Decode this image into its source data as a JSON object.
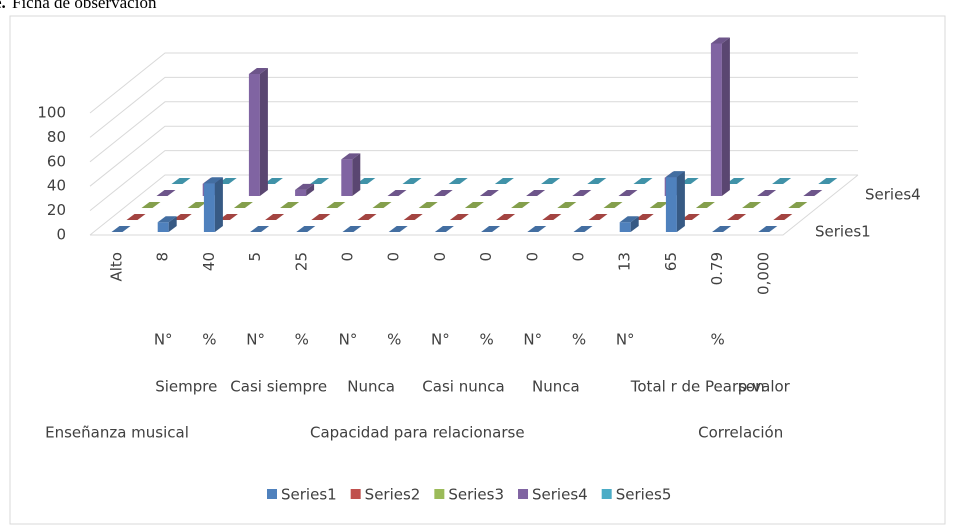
{
  "chart_data": {
    "type": "bar3d",
    "title_prefix": "e.",
    "title": "Ficha de observación",
    "categories": [
      "Alto",
      "8",
      "40",
      "5",
      "25",
      "0",
      "0",
      "0",
      "0",
      "0",
      "0",
      "13",
      "65",
      "0.79",
      "0,000"
    ],
    "category_levels": [
      [
        null,
        "N°",
        "%",
        "N°",
        "%",
        "N°",
        "%",
        "N°",
        "%",
        "N°",
        "%",
        "N°",
        "%",
        null,
        null
      ],
      [
        null,
        "Siempre",
        null,
        "Casi siempre",
        null,
        "Nunca",
        null,
        "Casi nunca",
        null,
        "Nunca",
        null,
        "Total",
        null,
        "r de Pearson",
        "p-valor"
      ],
      [
        "Enseñanza musical",
        "Capacidad para relacionarse",
        null,
        null,
        null,
        null,
        null,
        null,
        null,
        null,
        null,
        null,
        null,
        "Correlación",
        null
      ]
    ],
    "series": [
      {
        "name": "Series1",
        "color": "#4f81bd",
        "values": [
          0,
          8,
          40,
          0,
          0,
          0,
          0,
          0,
          0,
          0,
          0,
          8,
          45,
          0,
          0
        ]
      },
      {
        "name": "Series2",
        "color": "#c0504d",
        "values": [
          0,
          0,
          0,
          0,
          0,
          0,
          0,
          0,
          0,
          0,
          0,
          0,
          0,
          0,
          0
        ]
      },
      {
        "name": "Series3",
        "color": "#9bbb59",
        "values": [
          0,
          0,
          0,
          0,
          0,
          0,
          0,
          0,
          0,
          0,
          0,
          0,
          0,
          0,
          0
        ]
      },
      {
        "name": "Series4",
        "color": "#8064a2",
        "values": [
          0,
          10,
          100,
          5,
          30,
          0,
          0,
          0,
          0,
          0,
          0,
          15,
          125,
          0,
          0
        ]
      },
      {
        "name": "Series5",
        "color": "#4bacc6",
        "values": [
          0,
          0,
          0,
          0,
          0,
          0,
          0,
          0,
          0,
          0,
          0,
          0,
          0,
          0,
          0
        ]
      }
    ],
    "depth_labels": [
      "Series4",
      "Series1"
    ],
    "ylim": [
      0,
      100
    ],
    "yticks": [
      0,
      20,
      40,
      60,
      80,
      100
    ],
    "grid": true,
    "legend": "bottom"
  }
}
